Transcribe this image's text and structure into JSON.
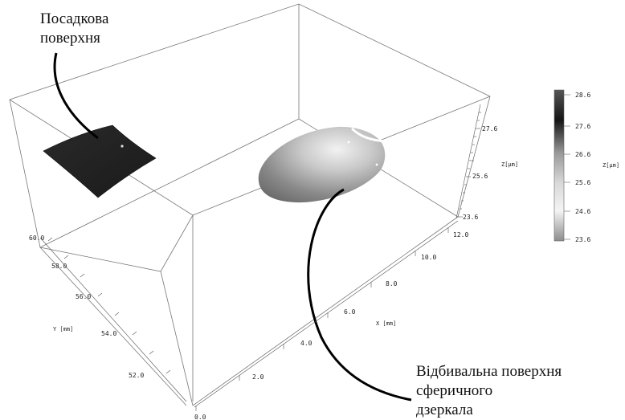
{
  "annotations": {
    "landing_surface": [
      "Посадкова",
      "поверхня"
    ],
    "reflecting_surface": [
      "Відбивальна поверхня",
      "сферичного",
      "дзеркала"
    ]
  },
  "axes": {
    "x_label": "X [mm]",
    "y_label": "Y [mm]",
    "z_label": "Z[μm]",
    "x_ticks": [
      "0.0",
      "2.0",
      "4.0",
      "6.0",
      "8.0",
      "10.0",
      "12.0"
    ],
    "y_ticks": [
      "52.0",
      "54.0",
      "56.0",
      "58.0",
      "60.0"
    ],
    "z_ticks": [
      "23.6",
      "25.6",
      "27.6"
    ]
  },
  "colorbar": {
    "label": "Z[μm]",
    "ticks": [
      "28.6",
      "27.6",
      "26.6",
      "25.6",
      "24.6",
      "23.6"
    ],
    "colors": [
      "#4d4d4d",
      "#1a1a1a",
      "#8a8a8a",
      "#cfcfcf",
      "#f2f2f2",
      "#9a9a9a"
    ]
  }
}
